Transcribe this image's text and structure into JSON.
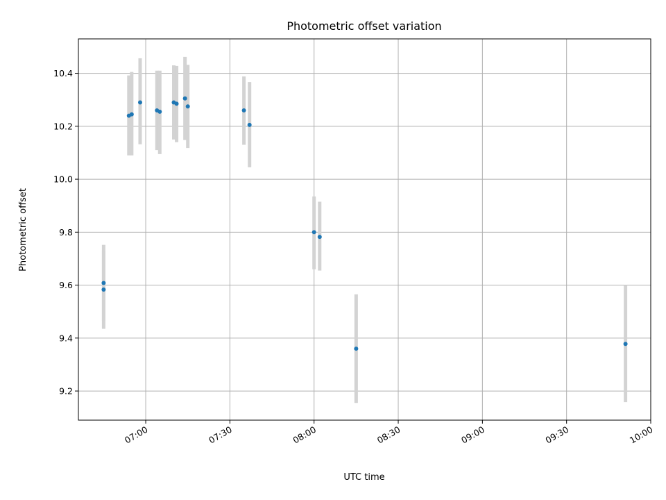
{
  "chart_data": {
    "type": "scatter",
    "title": "Photometric offset variation",
    "xlabel": "UTC time",
    "ylabel": "Photometric offset",
    "x_ticks": [
      "07:00",
      "07:30",
      "08:00",
      "08:30",
      "09:00",
      "09:30",
      "10:00"
    ],
    "y_ticks": [
      "9.2",
      "9.4",
      "9.6",
      "9.8",
      "10.0",
      "10.2",
      "10.4"
    ],
    "xlim": [
      "06:36",
      "10:00"
    ],
    "ylim": [
      9.09,
      10.53
    ],
    "grid": true,
    "colors": {
      "point": "#1f77b4",
      "errorbar": "#d3d3d3"
    },
    "points": [
      {
        "x": "06:45",
        "y": 9.583,
        "ylo": 9.435,
        "yhi": 9.73
      },
      {
        "x": "06:45",
        "y": 9.608,
        "ylo": 9.465,
        "yhi": 9.752
      },
      {
        "x": "06:54",
        "y": 10.24,
        "ylo": 10.09,
        "yhi": 10.392
      },
      {
        "x": "06:55",
        "y": 10.245,
        "ylo": 10.09,
        "yhi": 10.405
      },
      {
        "x": "06:58",
        "y": 10.29,
        "ylo": 10.132,
        "yhi": 10.457
      },
      {
        "x": "07:04",
        "y": 10.26,
        "ylo": 10.11,
        "yhi": 10.41
      },
      {
        "x": "07:05",
        "y": 10.255,
        "ylo": 10.095,
        "yhi": 10.41
      },
      {
        "x": "07:10",
        "y": 10.29,
        "ylo": 10.15,
        "yhi": 10.43
      },
      {
        "x": "07:11",
        "y": 10.285,
        "ylo": 10.14,
        "yhi": 10.428
      },
      {
        "x": "07:14",
        "y": 10.305,
        "ylo": 10.148,
        "yhi": 10.462
      },
      {
        "x": "07:15",
        "y": 10.275,
        "ylo": 10.118,
        "yhi": 10.432
      },
      {
        "x": "07:35",
        "y": 10.26,
        "ylo": 10.13,
        "yhi": 10.388
      },
      {
        "x": "07:37",
        "y": 10.205,
        "ylo": 10.045,
        "yhi": 10.367
      },
      {
        "x": "08:00",
        "y": 9.8,
        "ylo": 9.66,
        "yhi": 9.935
      },
      {
        "x": "08:02",
        "y": 9.782,
        "ylo": 9.655,
        "yhi": 9.915
      },
      {
        "x": "08:15",
        "y": 9.36,
        "ylo": 9.155,
        "yhi": 9.565
      },
      {
        "x": "09:51",
        "y": 9.378,
        "ylo": 9.158,
        "yhi": 9.6
      }
    ]
  }
}
